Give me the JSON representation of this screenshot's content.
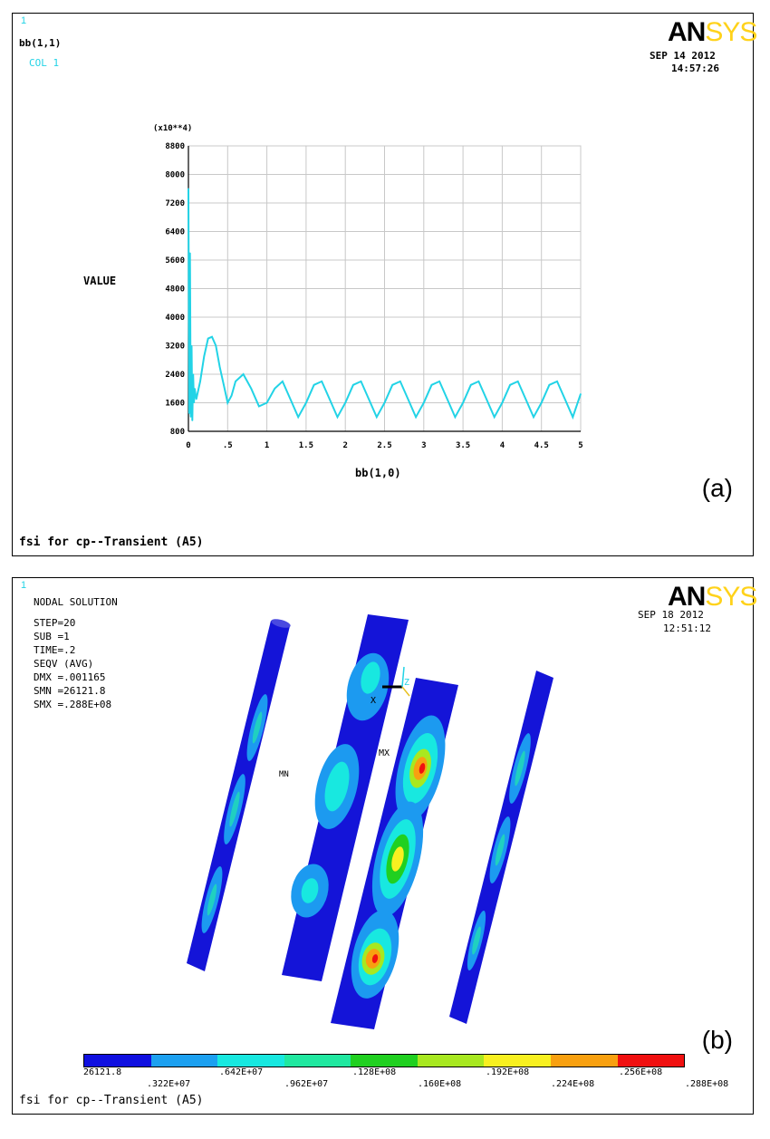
{
  "panel_a": {
    "window_number": "1",
    "header_line1": "bb(1,1)",
    "header_line2": "COL  1",
    "logo_an": "AN",
    "logo_sys": "SYS",
    "date": "SEP 14 2012",
    "time": "14:57:26",
    "footer": "fsi for cp--Transient (A5)",
    "panel_label": "(a)"
  },
  "panel_b": {
    "window_number": "1",
    "info_lines": [
      "NODAL SOLUTION",
      "STEP=20",
      "SUB =1",
      "TIME=.2",
      "SEQV     (AVG)",
      "DMX =.001165",
      "SMN =26121.8",
      "SMX =.288E+08"
    ],
    "logo_an": "AN",
    "logo_sys": "SYS",
    "date": "SEP 18 2012",
    "time": "12:51:12",
    "footer": "fsi for cp--Transient (A5)",
    "panel_label": "(b)",
    "triad_x": "X",
    "triad_z": "Z",
    "mx_label": "MX",
    "mn_label": "MN",
    "legend": {
      "colors": [
        "#1010e0",
        "#1ca0f0",
        "#18e8e0",
        "#20e8a0",
        "#20d020",
        "#a8e820",
        "#f8f020",
        "#f8a010",
        "#f01010"
      ],
      "labels_top_row": [
        "26121.8",
        ".642E+07",
        ".128E+08",
        ".192E+08",
        ".256E+08"
      ],
      "labels_bottom_row": [
        ".322E+07",
        ".962E+07",
        ".160E+08",
        ".224E+08",
        ".288E+08"
      ]
    }
  },
  "chart_data": {
    "type": "line",
    "title": "",
    "xlabel": "bb(1,0)",
    "ylabel": "VALUE",
    "y_multiplier_label": "(x10**4)",
    "xlim": [
      0,
      5
    ],
    "ylim": [
      800,
      8800
    ],
    "x_ticks": [
      "0",
      ".5",
      "1",
      "1.5",
      "2",
      "2.5",
      "3",
      "3.5",
      "4",
      "4.5",
      "5"
    ],
    "y_ticks": [
      "800",
      "1600",
      "2400",
      "3200",
      "4000",
      "4800",
      "5600",
      "6400",
      "7200",
      "8000",
      "8800"
    ],
    "grid": true,
    "series_color": "#22d3e6",
    "x": [
      0,
      0.01,
      0.02,
      0.03,
      0.04,
      0.05,
      0.06,
      0.07,
      0.08,
      0.1,
      0.12,
      0.15,
      0.2,
      0.25,
      0.3,
      0.35,
      0.4,
      0.45,
      0.5,
      0.55,
      0.6,
      0.7,
      0.8,
      0.9,
      1.0,
      1.1,
      1.2,
      1.3,
      1.4,
      1.5,
      1.6,
      1.7,
      1.8,
      1.9,
      2.0,
      2.1,
      2.2,
      2.3,
      2.4,
      2.5,
      2.6,
      2.7,
      2.8,
      2.9,
      3.0,
      3.1,
      3.2,
      3.3,
      3.4,
      3.5,
      3.6,
      3.7,
      3.8,
      3.9,
      4.0,
      4.1,
      4.2,
      4.3,
      4.4,
      4.5,
      4.6,
      4.7,
      4.8,
      4.9,
      5.0
    ],
    "y": [
      7600,
      1300,
      5800,
      1200,
      3200,
      1100,
      2400,
      1600,
      2000,
      1700,
      1900,
      2200,
      2900,
      3400,
      3450,
      3200,
      2600,
      2100,
      1600,
      1800,
      2200,
      2400,
      2000,
      1500,
      1600,
      2000,
      2200,
      1700,
      1200,
      1600,
      2100,
      2200,
      1700,
      1200,
      1600,
      2100,
      2200,
      1700,
      1200,
      1600,
      2100,
      2200,
      1700,
      1200,
      1600,
      2100,
      2200,
      1700,
      1200,
      1600,
      2100,
      2200,
      1700,
      1200,
      1600,
      2100,
      2200,
      1700,
      1200,
      1600,
      2100,
      2200,
      1700,
      1200,
      1850
    ]
  }
}
